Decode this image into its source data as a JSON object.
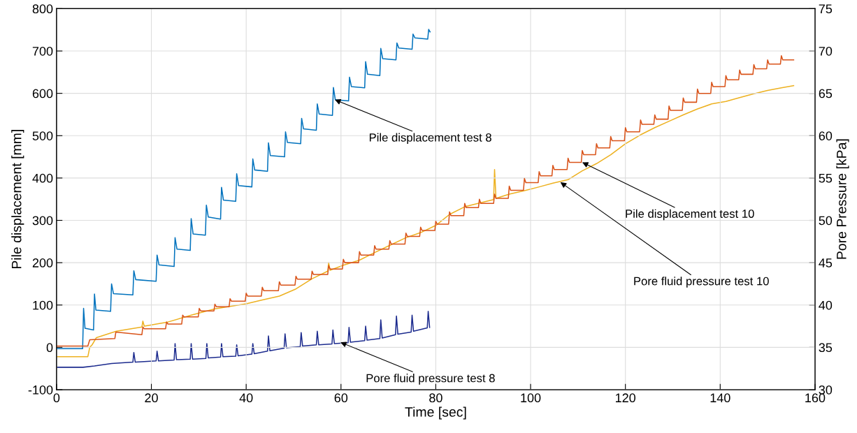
{
  "chart_data": {
    "type": "line",
    "xlabel": "Time [sec]",
    "ylabel": "Pile displacement [mm]",
    "y2label": "Pore Pressure [kPa]",
    "xlim": [
      0,
      160
    ],
    "xticks": [
      0,
      20,
      40,
      60,
      80,
      100,
      120,
      140,
      160
    ],
    "ylim": [
      -100,
      800
    ],
    "yticks": [
      -100,
      0,
      100,
      200,
      300,
      400,
      500,
      600,
      700,
      800
    ],
    "y2lim": [
      30,
      75
    ],
    "y2ticks": [
      30,
      35,
      40,
      45,
      50,
      55,
      60,
      65,
      70,
      75
    ],
    "grid": true,
    "marker": "none",
    "line_style": "solid",
    "series": [
      {
        "color": "#0072bd",
        "x": [
          0,
          5.5,
          5.7,
          6.0,
          7.8,
          8.0,
          8.3,
          11.4,
          11.6,
          12.0,
          16.1,
          16.3,
          16.7,
          21.0,
          21.2,
          21.6,
          24.8,
          25.0,
          25.4,
          28.2,
          28.4,
          28.8,
          31.4,
          31.6,
          32.0,
          34.6,
          34.8,
          35.2,
          37.8,
          38.0,
          38.4,
          41.2,
          41.4,
          41.8,
          44.5,
          44.7,
          45.1,
          48.1,
          48.3,
          48.7,
          51.5,
          51.7,
          52.1,
          54.8,
          55.0,
          55.4,
          58.2,
          58.4,
          58.8,
          61.6,
          61.8,
          62.2,
          65.0,
          65.2,
          65.6,
          68.2,
          68.4,
          68.8,
          71.6,
          71.8,
          72.2,
          75.0,
          75.2,
          75.6,
          78.3,
          78.5,
          78.8
        ],
        "values": [
          -3,
          -3,
          92,
          45,
          41,
          126,
          88,
          85,
          150,
          127,
          124,
          181,
          160,
          156,
          218,
          195,
          191,
          259,
          232,
          229,
          304,
          268,
          265,
          336,
          308,
          303,
          378,
          348,
          345,
          410,
          382,
          379,
          445,
          419,
          416,
          483,
          453,
          450,
          509,
          484,
          481,
          541,
          516,
          513,
          575,
          551,
          548,
          614,
          585,
          582,
          638,
          616,
          613,
          675,
          645,
          642,
          706,
          682,
          679,
          719,
          707,
          704,
          740,
          731,
          728,
          751,
          745
        ]
      },
      {
        "color": "#1c2b8e",
        "axis": "y2",
        "x": [
          0,
          5.6,
          8,
          11.6,
          16.1,
          16.3,
          16.6,
          21.0,
          21.2,
          21.5,
          24.8,
          25.0,
          25.3,
          28.2,
          28.4,
          28.7,
          31.5,
          31.7,
          32.0,
          34.6,
          34.8,
          35.1,
          37.8,
          38.0,
          38.3,
          41.2,
          41.4,
          41.7,
          44.5,
          44.7,
          45.0,
          48.0,
          48.2,
          48.5,
          51.4,
          51.6,
          51.9,
          54.8,
          55.0,
          55.3,
          58.1,
          58.3,
          58.6,
          61.5,
          61.7,
          62.0,
          65.0,
          65.2,
          65.5,
          68.2,
          68.4,
          68.7,
          71.5,
          71.7,
          72.0,
          74.8,
          75.0,
          75.3,
          78.2,
          78.4,
          78.7
        ],
        "values": [
          32.65,
          32.65,
          32.8,
          33.1,
          33.25,
          34.4,
          33.25,
          33.4,
          34.55,
          33.4,
          33.5,
          35.45,
          33.55,
          33.6,
          35.45,
          33.6,
          33.7,
          35.45,
          33.75,
          33.85,
          35.45,
          33.9,
          33.95,
          35.3,
          34.0,
          34.2,
          35.45,
          34.25,
          34.55,
          36.35,
          34.6,
          34.9,
          36.6,
          34.95,
          35.1,
          36.75,
          35.15,
          35.3,
          36.9,
          35.3,
          35.4,
          37.05,
          35.45,
          35.55,
          37.35,
          35.6,
          35.8,
          37.5,
          35.85,
          36.05,
          38.25,
          36.1,
          36.5,
          38.7,
          36.55,
          36.8,
          38.8,
          36.9,
          37.3,
          39.25,
          37.35
        ]
      },
      {
        "color": "#d95319",
        "x": [
          0,
          6.6,
          7.0,
          12.3,
          12.5,
          18.0,
          18.2,
          18.5,
          23.0,
          23.2,
          23.5,
          26.4,
          26.6,
          26.9,
          29.9,
          30.1,
          30.4,
          33.2,
          33.4,
          33.7,
          36.4,
          36.6,
          36.9,
          39.8,
          40.0,
          40.3,
          43.2,
          43.4,
          43.7,
          46.8,
          47.0,
          47.3,
          50.3,
          50.5,
          50.8,
          53.7,
          53.9,
          54.2,
          57.2,
          57.4,
          57.7,
          60.3,
          60.5,
          60.8,
          63.7,
          63.9,
          64.2,
          66.9,
          67.1,
          67.4,
          70.1,
          70.3,
          70.6,
          73.5,
          73.7,
          74.0,
          76.6,
          76.8,
          77.1,
          79.8,
          80.0,
          80.3,
          82.7,
          82.9,
          83.2,
          85.9,
          86.1,
          86.4,
          89.0,
          89.2,
          89.5,
          92.2,
          92.4,
          92.7,
          95.3,
          95.5,
          95.8,
          98.5,
          98.7,
          99.0,
          101.6,
          101.8,
          102.1,
          104.5,
          104.7,
          105.0,
          107.7,
          107.9,
          108.2,
          110.7,
          110.9,
          111.2,
          113.7,
          113.9,
          114.2,
          116.7,
          116.9,
          117.2,
          119.8,
          120.0,
          120.3,
          123.0,
          123.2,
          123.5,
          126.0,
          126.2,
          126.5,
          129.0,
          129.2,
          129.5,
          132.0,
          132.2,
          132.5,
          135.0,
          135.2,
          135.5,
          138.0,
          138.2,
          138.5,
          141.0,
          141.2,
          141.5,
          143.9,
          144.1,
          144.4,
          146.9,
          147.1,
          147.4,
          149.8,
          150.0,
          150.3,
          152.7,
          152.9,
          153.2,
          155.5
        ],
        "values": [
          3,
          3,
          18,
          21,
          36,
          30,
          48,
          44,
          44,
          60,
          55,
          55,
          76,
          72,
          72,
          92,
          86,
          86,
          102,
          96,
          96,
          115,
          109,
          109,
          128,
          121,
          121,
          142,
          134,
          134,
          155,
          147,
          147,
          168,
          161,
          161,
          180,
          172,
          172,
          193,
          185,
          185,
          208,
          200,
          200,
          226,
          218,
          218,
          240,
          232,
          232,
          252,
          244,
          244,
          270,
          262,
          262,
          284,
          276,
          276,
          298,
          291,
          291,
          320,
          311,
          311,
          340,
          330,
          330,
          350,
          340,
          340,
          362,
          352,
          352,
          381,
          371,
          371,
          399,
          389,
          389,
          415,
          405,
          405,
          430,
          420,
          420,
          447,
          437,
          437,
          465,
          455,
          455,
          481,
          471,
          471,
          498,
          488,
          488,
          519,
          509,
          509,
          537,
          527,
          527,
          549,
          539,
          539,
          570,
          560,
          560,
          589,
          579,
          579,
          610,
          600,
          600,
          626,
          616,
          616,
          642,
          632,
          632,
          655,
          645,
          645,
          668,
          658,
          658,
          679,
          669,
          669,
          689,
          679,
          679
        ]
      },
      {
        "color": "#edb120",
        "axis": "y2",
        "x": [
          0,
          6.6,
          7.0,
          7.5,
          8.4,
          12.6,
          18.0,
          18.2,
          18.5,
          23.2,
          28.4,
          33.4,
          40.0,
          43.4,
          47.0,
          50.5,
          53.9,
          57.2,
          57.4,
          57.7,
          60.5,
          63.9,
          67.1,
          70.3,
          73.7,
          76.8,
          80.0,
          82.9,
          86.1,
          89.2,
          92.2,
          92.4,
          92.7,
          95.5,
          98.7,
          101.8,
          104.7,
          107.9,
          110.9,
          113.9,
          116.9,
          120.0,
          123.2,
          126.2,
          129.2,
          132.2,
          135.2,
          138.2,
          141.2,
          144.1,
          147.1,
          150.0,
          152.9,
          155.5
        ],
        "values": [
          33.9,
          33.9,
          35.0,
          35.3,
          36.15,
          36.9,
          37.4,
          38.1,
          37.5,
          37.95,
          38.8,
          39.55,
          40.15,
          40.6,
          41.05,
          41.9,
          43.1,
          44.0,
          45.0,
          44.1,
          44.7,
          45.3,
          46.2,
          47.05,
          47.95,
          48.55,
          49.4,
          50.7,
          51.6,
          52.05,
          52.45,
          56.0,
          52.6,
          53.1,
          53.5,
          53.95,
          54.4,
          54.8,
          55.85,
          56.7,
          57.75,
          59.05,
          60.1,
          60.95,
          61.7,
          62.45,
          63.15,
          63.75,
          64.05,
          64.5,
          64.95,
          65.35,
          65.65,
          65.9
        ]
      }
    ],
    "annotations": [
      {
        "text": "Pile displacement test 8",
        "x": 58.7,
        "y": 585
      },
      {
        "text": "Pile displacement test 10",
        "x": 110.9,
        "y": 437
      },
      {
        "text": "Pore fluid pressure test 10",
        "x": 106.3,
        "y": 390
      },
      {
        "text": "Pore fluid pressure test 8",
        "x": 59.9,
        "y": 12
      }
    ]
  }
}
